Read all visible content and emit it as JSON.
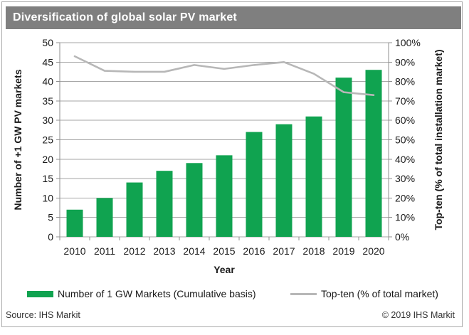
{
  "window": {
    "title": "Diversification of global solar PV market"
  },
  "colors": {
    "title_bar_bg": "#7f7f7f",
    "title_text": "#ffffff",
    "bar_green": "#10a350",
    "line_gray": "#b7b7b7",
    "grid_gray": "#a6a6a6",
    "axis_gray": "#8f8f8f",
    "text_dark": "#1a1a1a"
  },
  "chart_data": {
    "type": "bar",
    "subtype": "bar-line-combo",
    "categories": [
      "2010",
      "2011",
      "2012",
      "2013",
      "2014",
      "2015",
      "2016",
      "2017",
      "2018",
      "2019",
      "2020"
    ],
    "series": [
      {
        "name": "Number of 1 GW Markets (Cumulative basis)",
        "type": "bar",
        "axis": "left",
        "values": [
          7,
          10,
          14,
          17,
          19,
          21,
          27,
          29,
          31,
          41,
          43
        ]
      },
      {
        "name": "Top-ten (% of total market)",
        "type": "line",
        "axis": "right",
        "values": [
          93,
          85.5,
          85,
          85,
          88.5,
          86.5,
          88.5,
          90,
          84,
          74.5,
          73
        ]
      }
    ],
    "title": "Diversification of global solar PV market",
    "xlabel": "Year",
    "left_axis": {
      "label": "Number of +1 GW PV markets",
      "min": 0,
      "max": 50,
      "step": 5,
      "suffix": ""
    },
    "right_axis": {
      "label": "Top-ten (% of total installation market)",
      "min": 0,
      "max": 100,
      "step": 10,
      "suffix": "%"
    },
    "grid": true,
    "legend_position": "bottom"
  },
  "legend": {
    "items": [
      {
        "label": "Number of 1 GW Markets (Cumulative basis)",
        "swatch": "bar"
      },
      {
        "label": "Top-ten (% of total market)",
        "swatch": "line"
      }
    ]
  },
  "footer": {
    "source": "Source: IHS Markit",
    "copyright": "© 2019 IHS Markit"
  }
}
